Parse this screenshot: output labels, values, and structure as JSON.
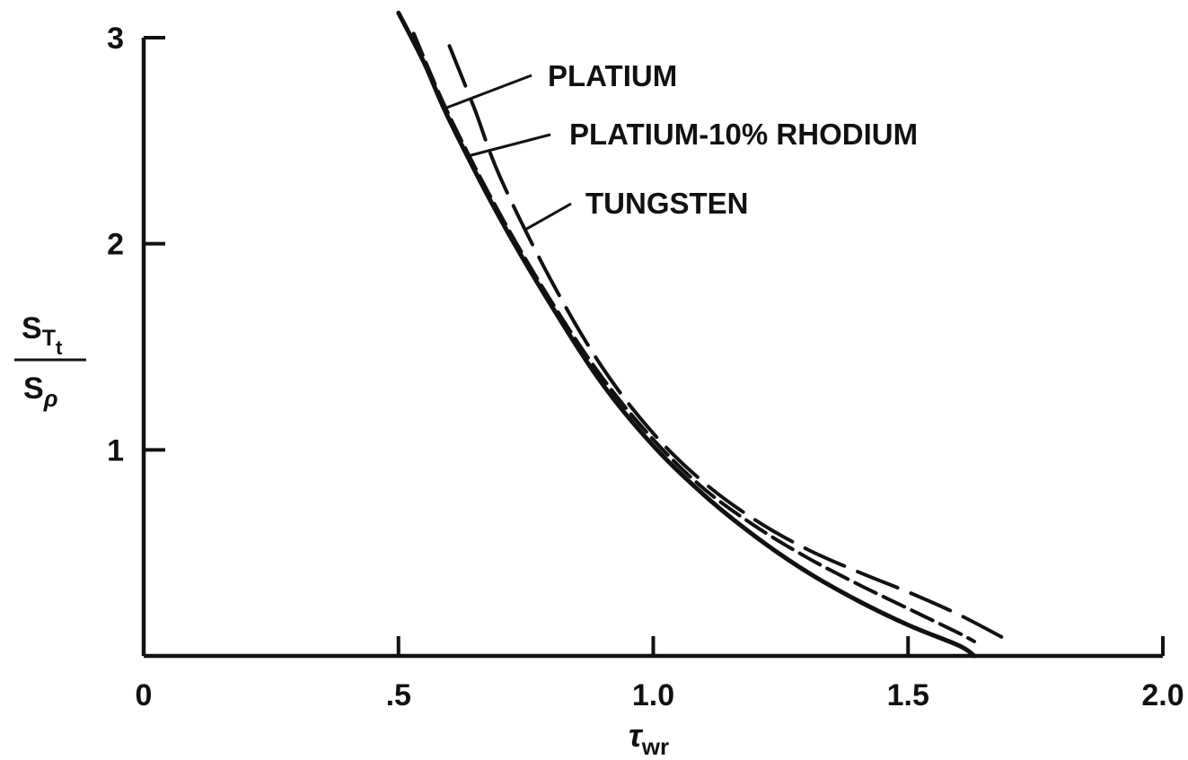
{
  "chart_data": {
    "type": "line",
    "xlabel": {
      "main": "τ",
      "sub": "wr"
    },
    "ylabel": {
      "numerator": "S",
      "numerator_sub": "T",
      "numerator_subsub": "t",
      "denominator": "S",
      "denominator_sub": "ρ"
    },
    "xlim": [
      0,
      2.0
    ],
    "ylim": [
      0,
      3
    ],
    "x_ticks": [
      {
        "value": 0,
        "label": "0"
      },
      {
        "value": 0.5,
        "label": ".5"
      },
      {
        "value": 1.0,
        "label": "1.0"
      },
      {
        "value": 1.5,
        "label": "1.5"
      },
      {
        "value": 2.0,
        "label": "2.0"
      }
    ],
    "y_ticks": [
      {
        "value": 1,
        "label": "1"
      },
      {
        "value": 2,
        "label": "2"
      },
      {
        "value": 3,
        "label": "3"
      }
    ],
    "grid": false,
    "series": [
      {
        "name": "PLATIUM",
        "style": "solid",
        "x": [
          0.5,
          0.55,
          0.6,
          0.7,
          0.8,
          0.9,
          1.0,
          1.1,
          1.2,
          1.3,
          1.4,
          1.5,
          1.6,
          1.63
        ],
        "y": [
          3.12,
          2.88,
          2.6,
          2.12,
          1.7,
          1.32,
          1.02,
          0.78,
          0.58,
          0.41,
          0.27,
          0.15,
          0.05,
          0.0
        ]
      },
      {
        "name": "PLATIUM-10% RHODIUM",
        "style": "dashed",
        "x": [
          0.53,
          0.6,
          0.7,
          0.8,
          0.9,
          1.0,
          1.1,
          1.2,
          1.3,
          1.4,
          1.5,
          1.6,
          1.63
        ],
        "y": [
          3.02,
          2.62,
          2.14,
          1.72,
          1.35,
          1.05,
          0.81,
          0.63,
          0.48,
          0.35,
          0.23,
          0.11,
          0.07
        ]
      },
      {
        "name": "TUNGSTEN",
        "style": "long-dashed",
        "x": [
          0.6,
          0.65,
          0.7,
          0.8,
          0.9,
          1.0,
          1.1,
          1.2,
          1.3,
          1.4,
          1.5,
          1.6,
          1.7
        ],
        "y": [
          2.96,
          2.65,
          2.32,
          1.82,
          1.4,
          1.08,
          0.84,
          0.66,
          0.52,
          0.41,
          0.31,
          0.2,
          0.07
        ]
      }
    ],
    "annotations": [
      {
        "text": "PLATIUM",
        "series": "PLATIUM"
      },
      {
        "text": "PLATIUM-10% RHODIUM",
        "series": "PLATIUM-10% RHODIUM"
      },
      {
        "text": "TUNGSTEN",
        "series": "TUNGSTEN"
      }
    ]
  }
}
